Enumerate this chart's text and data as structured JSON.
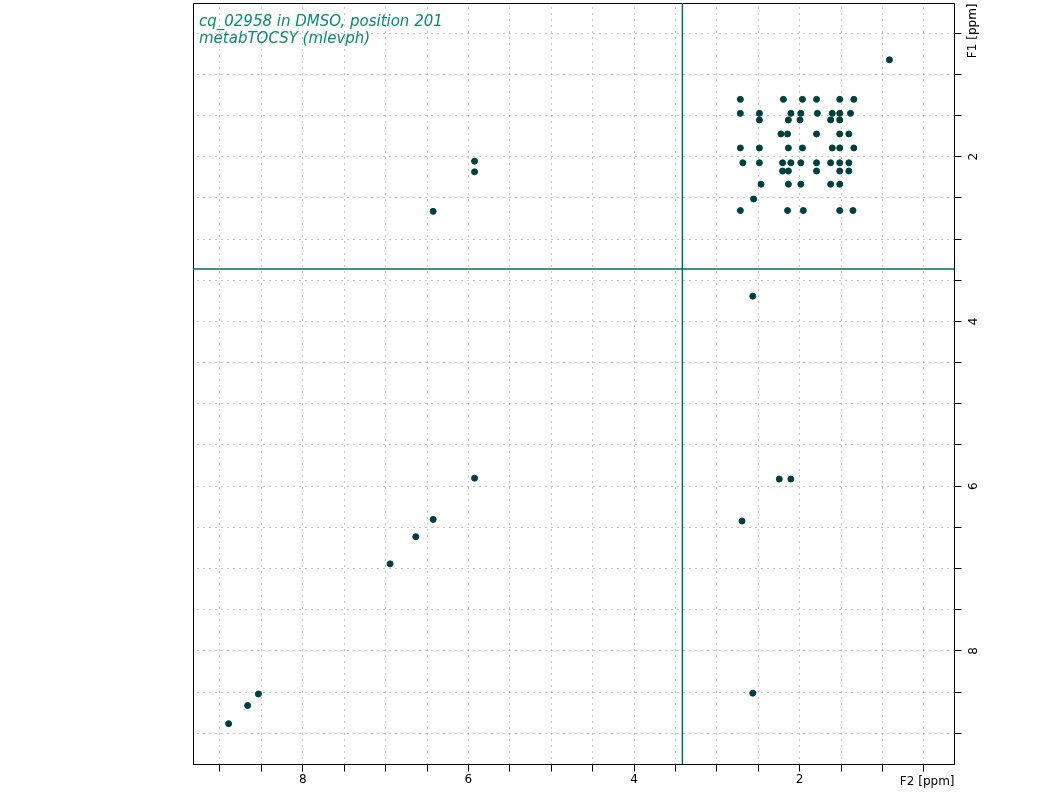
{
  "chart_data": {
    "type": "scatter",
    "title": "cq_02958 in DMSO, position 201",
    "subtitle": "metabTOCSY (mlevph)",
    "xlabel": "F2 [ppm]",
    "ylabel": "F1 [ppm]",
    "xlim": [
      9.32,
      0.13
    ],
    "ylim": [
      9.38,
      0.14
    ],
    "xticks": [
      {
        "value": 9,
        "label": null
      },
      {
        "value": 8.5,
        "label": null
      },
      8,
      {
        "value": 7.5,
        "label": null
      },
      {
        "value": 7,
        "label": null
      },
      {
        "value": 6.5,
        "label": null
      },
      6,
      {
        "value": 5.5,
        "label": null
      },
      {
        "value": 5,
        "label": null
      },
      {
        "value": 4.5,
        "label": null
      },
      4,
      {
        "value": 3.5,
        "label": null
      },
      {
        "value": 3,
        "label": null
      },
      {
        "value": 2.5,
        "label": null
      },
      2,
      {
        "value": 1.5,
        "label": null
      },
      {
        "value": 1,
        "label": null
      },
      {
        "value": 0.5,
        "label": null
      }
    ],
    "yticks": [
      {
        "value": 0.5,
        "label": null
      },
      {
        "value": 1,
        "label": null
      },
      {
        "value": 1.5,
        "label": null
      },
      2,
      {
        "value": 2.5,
        "label": null
      },
      {
        "value": 3,
        "label": null
      },
      {
        "value": 3.5,
        "label": null
      },
      4,
      {
        "value": 4.5,
        "label": null
      },
      {
        "value": 5,
        "label": null
      },
      {
        "value": 5.5,
        "label": null
      },
      6,
      {
        "value": 6.5,
        "label": null
      },
      {
        "value": 7,
        "label": null
      },
      {
        "value": 7.5,
        "label": null
      },
      8,
      {
        "value": 8.5,
        "label": null
      },
      {
        "value": 9,
        "label": null
      }
    ],
    "grid": true,
    "marker": "circle",
    "legend": false,
    "series": [
      {
        "color": "#003f3f",
        "x": [
          2.71,
          2.19,
          1.96,
          1.79,
          1.51,
          1.34,
          2.71,
          2.48,
          2.1,
          1.98,
          1.78,
          1.6,
          1.51,
          1.38,
          2.48,
          2.13,
          1.99,
          1.62,
          1.51,
          2.22,
          2.14,
          1.79,
          1.51,
          1.4,
          2.71,
          2.48,
          2.13,
          1.96,
          1.6,
          1.51,
          1.34,
          2.68,
          2.48,
          2.2,
          2.1,
          1.98,
          1.79,
          1.62,
          1.51,
          1.4,
          2.2,
          2.13,
          1.79,
          1.51,
          1.4,
          2.46,
          2.13,
          1.98,
          1.62,
          1.51,
          2.55,
          2.71,
          2.14,
          1.95,
          1.51,
          1.35,
          0.91,
          5.92,
          5.92,
          6.42,
          5.92,
          2.56,
          2.69,
          2.24,
          2.1,
          2.56,
          6.42,
          6.63,
          6.94,
          8.53,
          8.66,
          8.89
        ],
        "values": [
          1.31,
          1.31,
          1.31,
          1.31,
          1.31,
          1.31,
          1.48,
          1.48,
          1.48,
          1.48,
          1.48,
          1.48,
          1.48,
          1.48,
          1.56,
          1.56,
          1.56,
          1.56,
          1.56,
          1.73,
          1.73,
          1.73,
          1.73,
          1.73,
          1.9,
          1.9,
          1.9,
          1.9,
          1.9,
          1.9,
          1.9,
          2.08,
          2.08,
          2.08,
          2.08,
          2.08,
          2.08,
          2.08,
          2.08,
          2.08,
          2.18,
          2.18,
          2.18,
          2.18,
          2.18,
          2.34,
          2.34,
          2.34,
          2.34,
          2.34,
          2.52,
          2.66,
          2.66,
          2.66,
          2.66,
          2.66,
          0.83,
          2.06,
          2.19,
          2.67,
          5.91,
          3.7,
          6.43,
          5.92,
          5.92,
          8.52,
          6.41,
          6.62,
          6.95,
          8.53,
          8.67,
          8.89
        ]
      }
    ],
    "ref_lines": [
      {
        "axis": "y",
        "value": 3.37,
        "color": "#006b66"
      },
      {
        "axis": "x",
        "value": 3.41,
        "color": "#006b66"
      }
    ]
  }
}
